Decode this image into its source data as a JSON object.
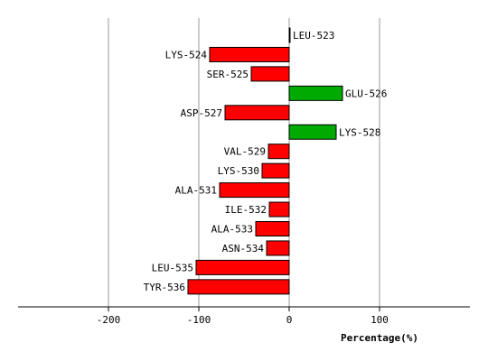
{
  "chart_data": {
    "type": "bar",
    "orientation": "horizontal",
    "categories": [
      "LEU-523",
      "LYS-524",
      "SER-525",
      "GLU-526",
      "ASP-527",
      "LYS-528",
      "VAL-529",
      "LYS-530",
      "ALA-531",
      "ILE-532",
      "ALA-533",
      "ASN-534",
      "LEU-535",
      "TYR-536"
    ],
    "values": [
      1,
      -88,
      -42,
      59,
      -71,
      52,
      -23,
      -30,
      -77,
      -22,
      -37,
      -25,
      -103,
      -112
    ],
    "xlabel": "Percentage(%)",
    "ylabel": "",
    "title": "",
    "xlim": [
      -300,
      200
    ],
    "xticks": [
      -200,
      -100,
      0,
      100
    ],
    "xtick_labels": [
      "-200",
      "-100",
      "0",
      "100"
    ],
    "grid": "vertical",
    "legend": "none",
    "colors": {
      "negative": "#ff0000",
      "positive": "#00aa00",
      "stroke": "#000000",
      "grid": "#999999"
    }
  }
}
